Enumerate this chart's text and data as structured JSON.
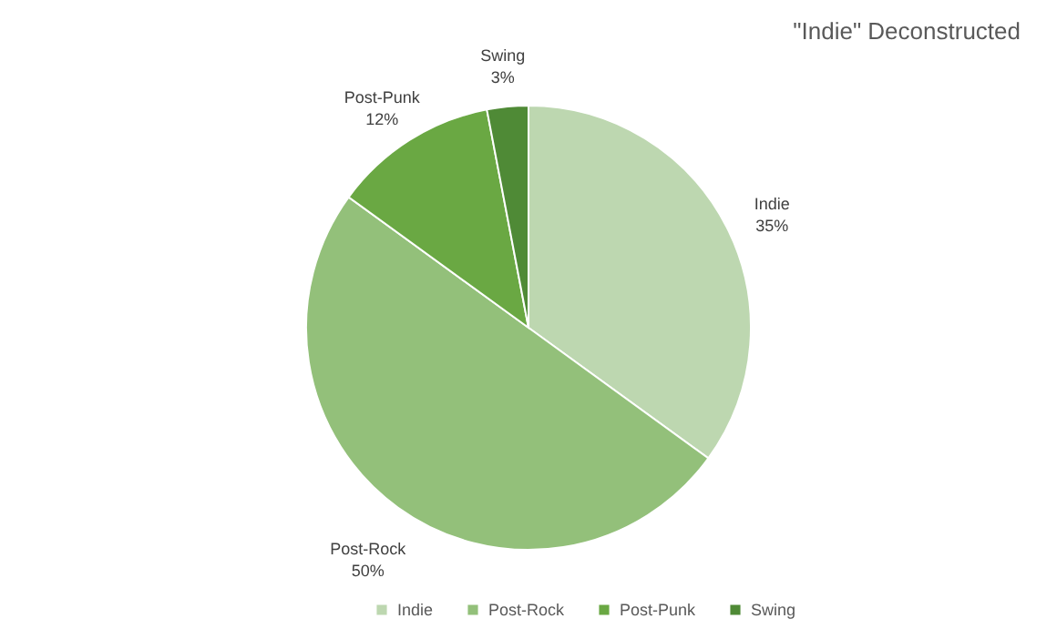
{
  "chart_data": {
    "type": "pie",
    "title": "\"Indie\" Deconstructed",
    "categories": [
      "Indie",
      "Post-Rock",
      "Post-Punk",
      "Swing"
    ],
    "values": [
      35,
      50,
      12,
      3
    ],
    "value_labels": [
      "35%",
      "50%",
      "12%",
      "3%"
    ],
    "colors": [
      "#bdd7b0",
      "#93c07a",
      "#6aa843",
      "#4f8a36"
    ],
    "legend": "bottom"
  }
}
